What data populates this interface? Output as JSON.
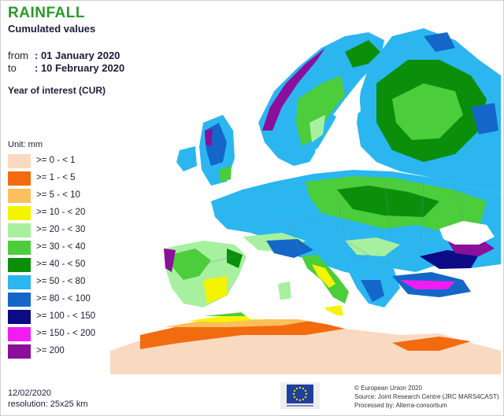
{
  "header": {
    "title": "RAINFALL",
    "subtitle": "Cumulated values",
    "from_label": "from",
    "from_value": ": 01 January 2020",
    "to_label": "to",
    "to_value": ": 10 February 2020",
    "year_of_interest": "Year of interest (CUR)"
  },
  "legend": {
    "unit": "Unit:  mm",
    "items": [
      {
        "label": ">= 0 - < 1",
        "color": "#fad9c1"
      },
      {
        "label": ">= 1 - < 5",
        "color": "#f26b0f"
      },
      {
        "label": ">= 5 - < 10",
        "color": "#fbbf5c"
      },
      {
        "label": ">= 10 - < 20",
        "color": "#f6f300"
      },
      {
        "label": ">= 20 - < 30",
        "color": "#a6f0a0"
      },
      {
        "label": ">= 30 - < 40",
        "color": "#4ccd3c"
      },
      {
        "label": ">= 40 - < 50",
        "color": "#0b8f0b"
      },
      {
        "label": ">= 50 - < 80",
        "color": "#2bb6f0"
      },
      {
        "label": ">= 80 - < 100",
        "color": "#1467c8"
      },
      {
        "label": ">= 100 - < 150",
        "color": "#0b0b85"
      },
      {
        "label": ">= 150 - < 200",
        "color": "#f21cf2"
      },
      {
        "label": ">= 200",
        "color": "#8a0f9a"
      }
    ]
  },
  "footer": {
    "date": "12/02/2020",
    "resolution": "resolution:  25x25 km",
    "credit_1": "© European Union 2020",
    "credit_2": "Source: Joint Research Centre (JRC MARS4CAST)",
    "credit_3": "Processed by: Alterra-consortium"
  },
  "colors": {
    "title": "#2a9a2a",
    "sea": "#ffffff",
    "eu_flag": "#1d3f9e",
    "eu_stars": "#ffd400"
  }
}
